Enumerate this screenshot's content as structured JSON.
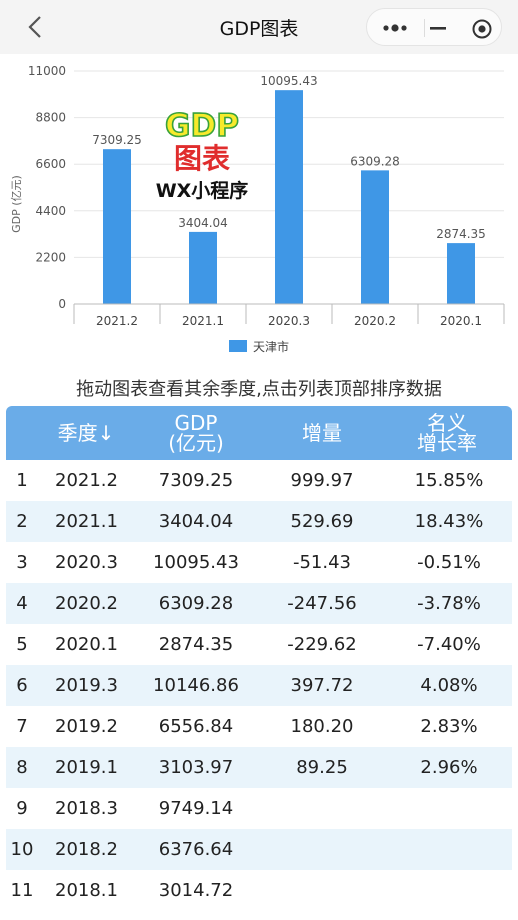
{
  "header": {
    "title": "GDP图表",
    "back_icon": "chevron-left-icon",
    "more_icon": "more-dots-icon",
    "minimize_icon": "minimize-icon",
    "close_icon": "target-close-icon"
  },
  "chart_data": {
    "type": "bar",
    "categories": [
      "2021.2",
      "2021.1",
      "2020.3",
      "2020.2",
      "2020.1"
    ],
    "series": [
      {
        "name": "天津市",
        "values": [
          7309.25,
          3404.04,
          10095.43,
          6309.28,
          2874.35
        ],
        "color": "#3f97e6"
      }
    ],
    "data_labels": [
      "7309.25",
      "3404.04",
      "10095.43",
      "6309.28",
      "2874.35"
    ],
    "ylabel": "GDP (亿元)",
    "ylim": [
      0,
      11000
    ],
    "yticks": [
      0,
      2200,
      4400,
      6600,
      8800,
      11000
    ],
    "grid": true,
    "legend": "bottom-center"
  },
  "watermark": {
    "line1": "GDP",
    "line2": "图表",
    "line3": "WX小程序"
  },
  "hint": "拖动图表查看其余季度,点击列表顶部排序数据",
  "table": {
    "headers": {
      "quarter": "季度↓",
      "gdp_line1": "GDP",
      "gdp_line2": "(亿元)",
      "increase": "增量",
      "rate_line1": "名义",
      "rate_line2": "增长率"
    },
    "rows": [
      {
        "idx": "1",
        "quarter": "2021.2",
        "gdp": "7309.25",
        "increase": "999.97",
        "rate": "15.85%"
      },
      {
        "idx": "2",
        "quarter": "2021.1",
        "gdp": "3404.04",
        "increase": "529.69",
        "rate": "18.43%"
      },
      {
        "idx": "3",
        "quarter": "2020.3",
        "gdp": "10095.43",
        "increase": "-51.43",
        "rate": "-0.51%"
      },
      {
        "idx": "4",
        "quarter": "2020.2",
        "gdp": "6309.28",
        "increase": "-247.56",
        "rate": "-3.78%"
      },
      {
        "idx": "5",
        "quarter": "2020.1",
        "gdp": "2874.35",
        "increase": "-229.62",
        "rate": "-7.40%"
      },
      {
        "idx": "6",
        "quarter": "2019.3",
        "gdp": "10146.86",
        "increase": "397.72",
        "rate": "4.08%"
      },
      {
        "idx": "7",
        "quarter": "2019.2",
        "gdp": "6556.84",
        "increase": "180.20",
        "rate": "2.83%"
      },
      {
        "idx": "8",
        "quarter": "2019.1",
        "gdp": "3103.97",
        "increase": "89.25",
        "rate": "2.96%"
      },
      {
        "idx": "9",
        "quarter": "2018.3",
        "gdp": "9749.14",
        "increase": "",
        "rate": ""
      },
      {
        "idx": "10",
        "quarter": "2018.2",
        "gdp": "6376.64",
        "increase": "",
        "rate": ""
      },
      {
        "idx": "11",
        "quarter": "2018.1",
        "gdp": "3014.72",
        "increase": "",
        "rate": ""
      }
    ]
  }
}
